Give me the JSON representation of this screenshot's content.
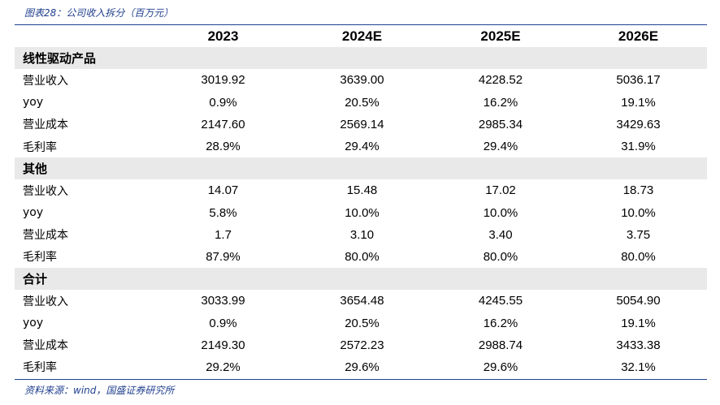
{
  "caption": "图表28：公司收入拆分（百万元）",
  "headers": [
    "",
    "2023",
    "2024E",
    "2025E",
    "2026E"
  ],
  "sections": [
    {
      "title": "线性驱动产品",
      "rows": [
        {
          "label": "营业收入",
          "values": [
            "3019.92",
            "3639.00",
            "4228.52",
            "5036.17"
          ]
        },
        {
          "label": "yoy",
          "values": [
            "0.9%",
            "20.5%",
            "16.2%",
            "19.1%"
          ]
        },
        {
          "label": "营业成本",
          "values": [
            "2147.60",
            "2569.14",
            "2985.34",
            "3429.63"
          ]
        },
        {
          "label": "毛利率",
          "values": [
            "28.9%",
            "29.4%",
            "29.4%",
            "31.9%"
          ]
        }
      ]
    },
    {
      "title": "其他",
      "rows": [
        {
          "label": "营业收入",
          "values": [
            "14.07",
            "15.48",
            "17.02",
            "18.73"
          ]
        },
        {
          "label": "yoy",
          "values": [
            "5.8%",
            "10.0%",
            "10.0%",
            "10.0%"
          ]
        },
        {
          "label": "营业成本",
          "values": [
            "1.7",
            "3.10",
            "3.40",
            "3.75"
          ]
        },
        {
          "label": "毛利率",
          "values": [
            "87.9%",
            "80.0%",
            "80.0%",
            "80.0%"
          ]
        }
      ]
    },
    {
      "title": "合计",
      "rows": [
        {
          "label": "营业收入",
          "values": [
            "3033.99",
            "3654.48",
            "4245.55",
            "5054.90"
          ]
        },
        {
          "label": "yoy",
          "values": [
            "0.9%",
            "20.5%",
            "16.2%",
            "19.1%"
          ]
        },
        {
          "label": "营业成本",
          "values": [
            "2149.30",
            "2572.23",
            "2988.74",
            "3433.38"
          ]
        },
        {
          "label": "毛利率",
          "values": [
            "29.2%",
            "29.6%",
            "29.6%",
            "32.1%"
          ]
        }
      ]
    }
  ],
  "source": "资料来源：wind，国盛证券研究所"
}
